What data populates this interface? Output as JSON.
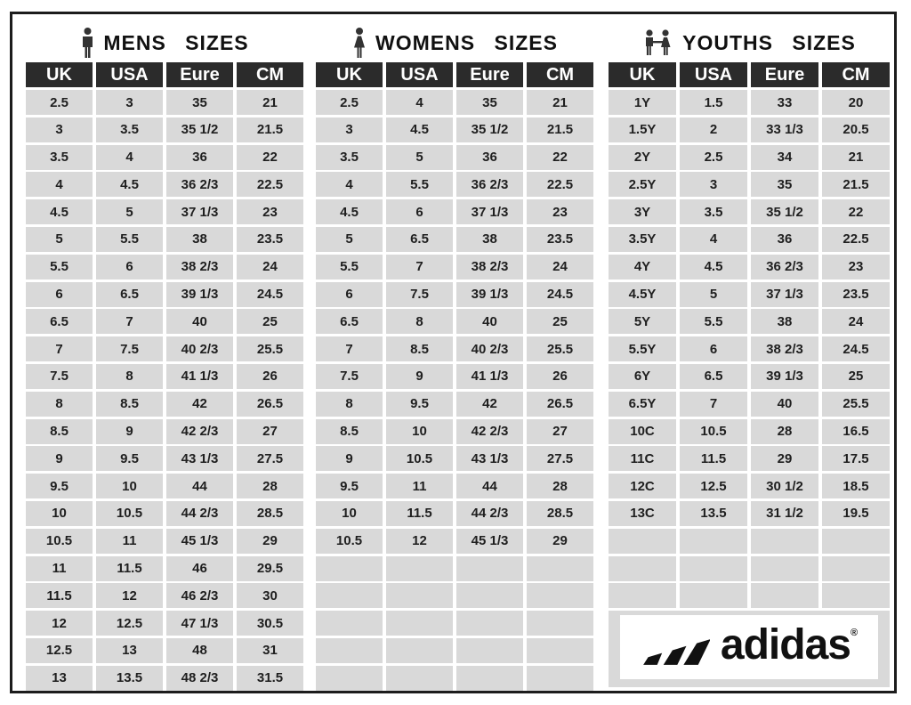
{
  "colors": {
    "header_bg": "#2b2b2b",
    "header_text": "#ffffff",
    "cell_bg": "#d9d9d9",
    "cell_text": "#1f1f1f",
    "frame_border": "#1c1c1c",
    "logo_color": "#111111"
  },
  "logo": {
    "brand": "adidas",
    "registered_mark": "®"
  },
  "tables": [
    {
      "id": "mens",
      "title": "MENS SIZES",
      "icon": "man-icon",
      "headers": [
        "UK",
        "USA",
        "Eure",
        "CM"
      ],
      "rows": [
        [
          "2.5",
          "3",
          "35",
          "21"
        ],
        [
          "3",
          "3.5",
          "35 1/2",
          "21.5"
        ],
        [
          "3.5",
          "4",
          "36",
          "22"
        ],
        [
          "4",
          "4.5",
          "36 2/3",
          "22.5"
        ],
        [
          "4.5",
          "5",
          "37 1/3",
          "23"
        ],
        [
          "5",
          "5.5",
          "38",
          "23.5"
        ],
        [
          "5.5",
          "6",
          "38 2/3",
          "24"
        ],
        [
          "6",
          "6.5",
          "39 1/3",
          "24.5"
        ],
        [
          "6.5",
          "7",
          "40",
          "25"
        ],
        [
          "7",
          "7.5",
          "40 2/3",
          "25.5"
        ],
        [
          "7.5",
          "8",
          "41 1/3",
          "26"
        ],
        [
          "8",
          "8.5",
          "42",
          "26.5"
        ],
        [
          "8.5",
          "9",
          "42 2/3",
          "27"
        ],
        [
          "9",
          "9.5",
          "43 1/3",
          "27.5"
        ],
        [
          "9.5",
          "10",
          "44",
          "28"
        ],
        [
          "10",
          "10.5",
          "44 2/3",
          "28.5"
        ],
        [
          "10.5",
          "11",
          "45 1/3",
          "29"
        ],
        [
          "11",
          "11.5",
          "46",
          "29.5"
        ],
        [
          "11.5",
          "12",
          "46 2/3",
          "30"
        ],
        [
          "12",
          "12.5",
          "47 1/3",
          "30.5"
        ],
        [
          "12.5",
          "13",
          "48",
          "31"
        ],
        [
          "13",
          "13.5",
          "48 2/3",
          "31.5"
        ]
      ],
      "empty_rows": 0,
      "has_logo": false
    },
    {
      "id": "womens",
      "title": "WOMENS SIZES",
      "icon": "woman-icon",
      "headers": [
        "UK",
        "USA",
        "Eure",
        "CM"
      ],
      "rows": [
        [
          "2.5",
          "4",
          "35",
          "21"
        ],
        [
          "3",
          "4.5",
          "35 1/2",
          "21.5"
        ],
        [
          "3.5",
          "5",
          "36",
          "22"
        ],
        [
          "4",
          "5.5",
          "36 2/3",
          "22.5"
        ],
        [
          "4.5",
          "6",
          "37 1/3",
          "23"
        ],
        [
          "5",
          "6.5",
          "38",
          "23.5"
        ],
        [
          "5.5",
          "7",
          "38 2/3",
          "24"
        ],
        [
          "6",
          "7.5",
          "39 1/3",
          "24.5"
        ],
        [
          "6.5",
          "8",
          "40",
          "25"
        ],
        [
          "7",
          "8.5",
          "40 2/3",
          "25.5"
        ],
        [
          "7.5",
          "9",
          "41 1/3",
          "26"
        ],
        [
          "8",
          "9.5",
          "42",
          "26.5"
        ],
        [
          "8.5",
          "10",
          "42 2/3",
          "27"
        ],
        [
          "9",
          "10.5",
          "43 1/3",
          "27.5"
        ],
        [
          "9.5",
          "11",
          "44",
          "28"
        ],
        [
          "10",
          "11.5",
          "44 2/3",
          "28.5"
        ],
        [
          "10.5",
          "12",
          "45 1/3",
          "29"
        ]
      ],
      "empty_rows": 5,
      "has_logo": false
    },
    {
      "id": "youths",
      "title": "YOUTHS SIZES",
      "icon": "children-icon",
      "headers": [
        "UK",
        "USA",
        "Eure",
        "CM"
      ],
      "rows": [
        [
          "1Y",
          "1.5",
          "33",
          "20"
        ],
        [
          "1.5Y",
          "2",
          "33 1/3",
          "20.5"
        ],
        [
          "2Y",
          "2.5",
          "34",
          "21"
        ],
        [
          "2.5Y",
          "3",
          "35",
          "21.5"
        ],
        [
          "3Y",
          "3.5",
          "35 1/2",
          "22"
        ],
        [
          "3.5Y",
          "4",
          "36",
          "22.5"
        ],
        [
          "4Y",
          "4.5",
          "36 2/3",
          "23"
        ],
        [
          "4.5Y",
          "5",
          "37 1/3",
          "23.5"
        ],
        [
          "5Y",
          "5.5",
          "38",
          "24"
        ],
        [
          "5.5Y",
          "6",
          "38 2/3",
          "24.5"
        ],
        [
          "6Y",
          "6.5",
          "39 1/3",
          "25"
        ],
        [
          "6.5Y",
          "7",
          "40",
          "25.5"
        ],
        [
          "10C",
          "10.5",
          "28",
          "16.5"
        ],
        [
          "11C",
          "11.5",
          "29",
          "17.5"
        ],
        [
          "12C",
          "12.5",
          "30 1/2",
          "18.5"
        ],
        [
          "13C",
          "13.5",
          "31 1/2",
          "19.5"
        ]
      ],
      "empty_rows": 3,
      "has_logo": true
    }
  ]
}
